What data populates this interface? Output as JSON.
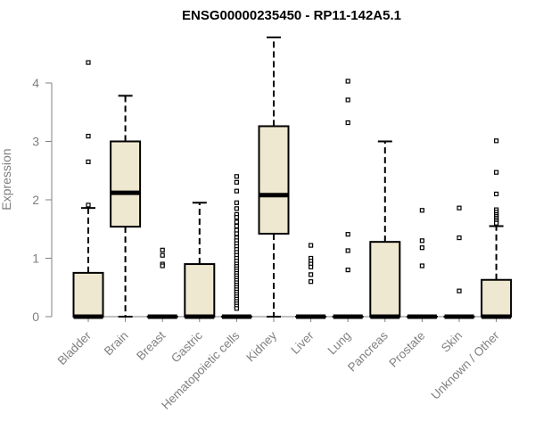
{
  "chart_data": {
    "type": "boxplot",
    "title": "ENSG00000235450 - RP11-142A5.1",
    "xlabel": "",
    "ylabel": "Expression",
    "ylim": [
      0,
      4.8
    ],
    "yticks": [
      0,
      1,
      2,
      3,
      4
    ],
    "grid": false,
    "box_fill": "#efe8d0",
    "axis_color": "#808080",
    "categories": [
      "Bladder",
      "Brain",
      "Breast",
      "Gastric",
      "Hematopoietic cells",
      "Kidney",
      "Liver",
      "Lung",
      "Pancreas",
      "Prostate",
      "Skin",
      "Unknown / Other"
    ],
    "series": [
      {
        "category": "Bladder",
        "q1": 0,
        "median": 0,
        "q3": 0.75,
        "whisker_low": 0,
        "whisker_high": 1.86,
        "outliers": [
          4.35,
          3.09,
          2.65,
          1.91
        ]
      },
      {
        "category": "Brain",
        "q1": 1.54,
        "median": 2.12,
        "q3": 3.0,
        "whisker_low": 0,
        "whisker_high": 3.78,
        "outliers": []
      },
      {
        "category": "Breast",
        "q1": 0,
        "median": 0,
        "q3": 0,
        "whisker_low": 0,
        "whisker_high": 0,
        "outliers": [
          1.14,
          1.05,
          0.9,
          0.87
        ]
      },
      {
        "category": "Gastric",
        "q1": 0,
        "median": 0,
        "q3": 0.9,
        "whisker_low": 0,
        "whisker_high": 1.95,
        "outliers": []
      },
      {
        "category": "Hematopoietic cells",
        "q1": 0,
        "median": 0,
        "q3": 0,
        "whisker_low": 0,
        "whisker_high": 0,
        "outliers": [
          2.4,
          2.3,
          2.15,
          1.95,
          1.85,
          1.75,
          1.7,
          1.62,
          1.55,
          1.48,
          1.42,
          1.35,
          1.3,
          1.25,
          1.2,
          1.15,
          1.1,
          1.05,
          1.0,
          0.95,
          0.9,
          0.86,
          0.82,
          0.78,
          0.74,
          0.7,
          0.66,
          0.62,
          0.58,
          0.54,
          0.5,
          0.46,
          0.42,
          0.38,
          0.34,
          0.3,
          0.26,
          0.22,
          0.18,
          0.14
        ]
      },
      {
        "category": "Kidney",
        "q1": 1.42,
        "median": 2.08,
        "q3": 3.26,
        "whisker_low": 0,
        "whisker_high": 4.78,
        "outliers": []
      },
      {
        "category": "Liver",
        "q1": 0,
        "median": 0,
        "q3": 0,
        "whisker_low": 0,
        "whisker_high": 0,
        "outliers": [
          1.22,
          1.0,
          0.95,
          0.9,
          0.85,
          0.72,
          0.6
        ]
      },
      {
        "category": "Lung",
        "q1": 0,
        "median": 0,
        "q3": 0,
        "whisker_low": 0,
        "whisker_high": 0,
        "outliers": [
          4.03,
          3.71,
          3.32,
          1.41,
          1.13,
          0.8
        ]
      },
      {
        "category": "Pancreas",
        "q1": 0,
        "median": 0,
        "q3": 1.28,
        "whisker_low": 0,
        "whisker_high": 3.0,
        "outliers": []
      },
      {
        "category": "Prostate",
        "q1": 0,
        "median": 0,
        "q3": 0,
        "whisker_low": 0,
        "whisker_high": 0,
        "outliers": [
          1.82,
          1.3,
          1.18,
          0.87
        ]
      },
      {
        "category": "Skin",
        "q1": 0,
        "median": 0,
        "q3": 0,
        "whisker_low": 0,
        "whisker_high": 0,
        "outliers": [
          1.86,
          1.35,
          0.44
        ]
      },
      {
        "category": "Unknown / Other",
        "q1": 0,
        "median": 0,
        "q3": 0.63,
        "whisker_low": 0,
        "whisker_high": 1.55,
        "outliers": [
          3.01,
          2.47,
          2.1,
          1.83,
          1.79,
          1.75,
          1.72,
          1.69,
          1.66,
          1.63,
          1.6
        ]
      }
    ]
  }
}
